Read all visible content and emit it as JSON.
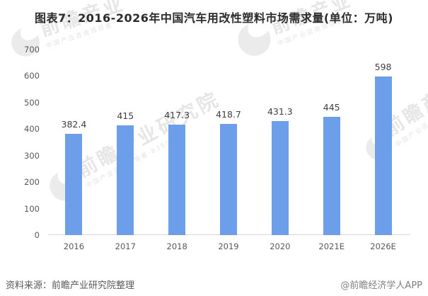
{
  "title": "图表7：2016-2026年中国汽车用改性塑料市场需求量(单位：万吨)",
  "chart_data": {
    "type": "bar",
    "title": "图表7：2016-2026年中国汽车用改性塑料市场需求量(单位：万吨)",
    "unit": "万吨",
    "categories": [
      "2016",
      "2017",
      "2018",
      "2019",
      "2020",
      "2021E",
      "2026E"
    ],
    "values": [
      382.4,
      415,
      417.3,
      418.7,
      431.3,
      445,
      598
    ],
    "labels": [
      "382.4",
      "415",
      "417.3",
      "418.7",
      "431.3",
      "445",
      "598"
    ],
    "xlabel": "",
    "ylabel": "",
    "ylim": [
      0,
      700
    ],
    "yticks": [
      0,
      100,
      200,
      300,
      400,
      500,
      600,
      700
    ],
    "grid": false,
    "legend": "none",
    "bar_color": "#6D9EEA",
    "axis_color": "#d6d6d6"
  },
  "footer": {
    "source": "资料来源：前瞻产业研究院整理",
    "credit": "@前瞻经济学人APP"
  },
  "watermarks": [
    {
      "brand": "前瞻产业",
      "tagline": "中国产业咨询领导者"
    },
    {
      "brand": "前瞻产业研究院",
      "tagline": "中国产业咨询领导者·839599"
    },
    {
      "brand": "前瞻产业",
      "tagline": "中国产业咨询领导者"
    },
    {
      "brand": "前瞻产业研究院",
      "tagline": "中国产业咨询领导者"
    }
  ]
}
